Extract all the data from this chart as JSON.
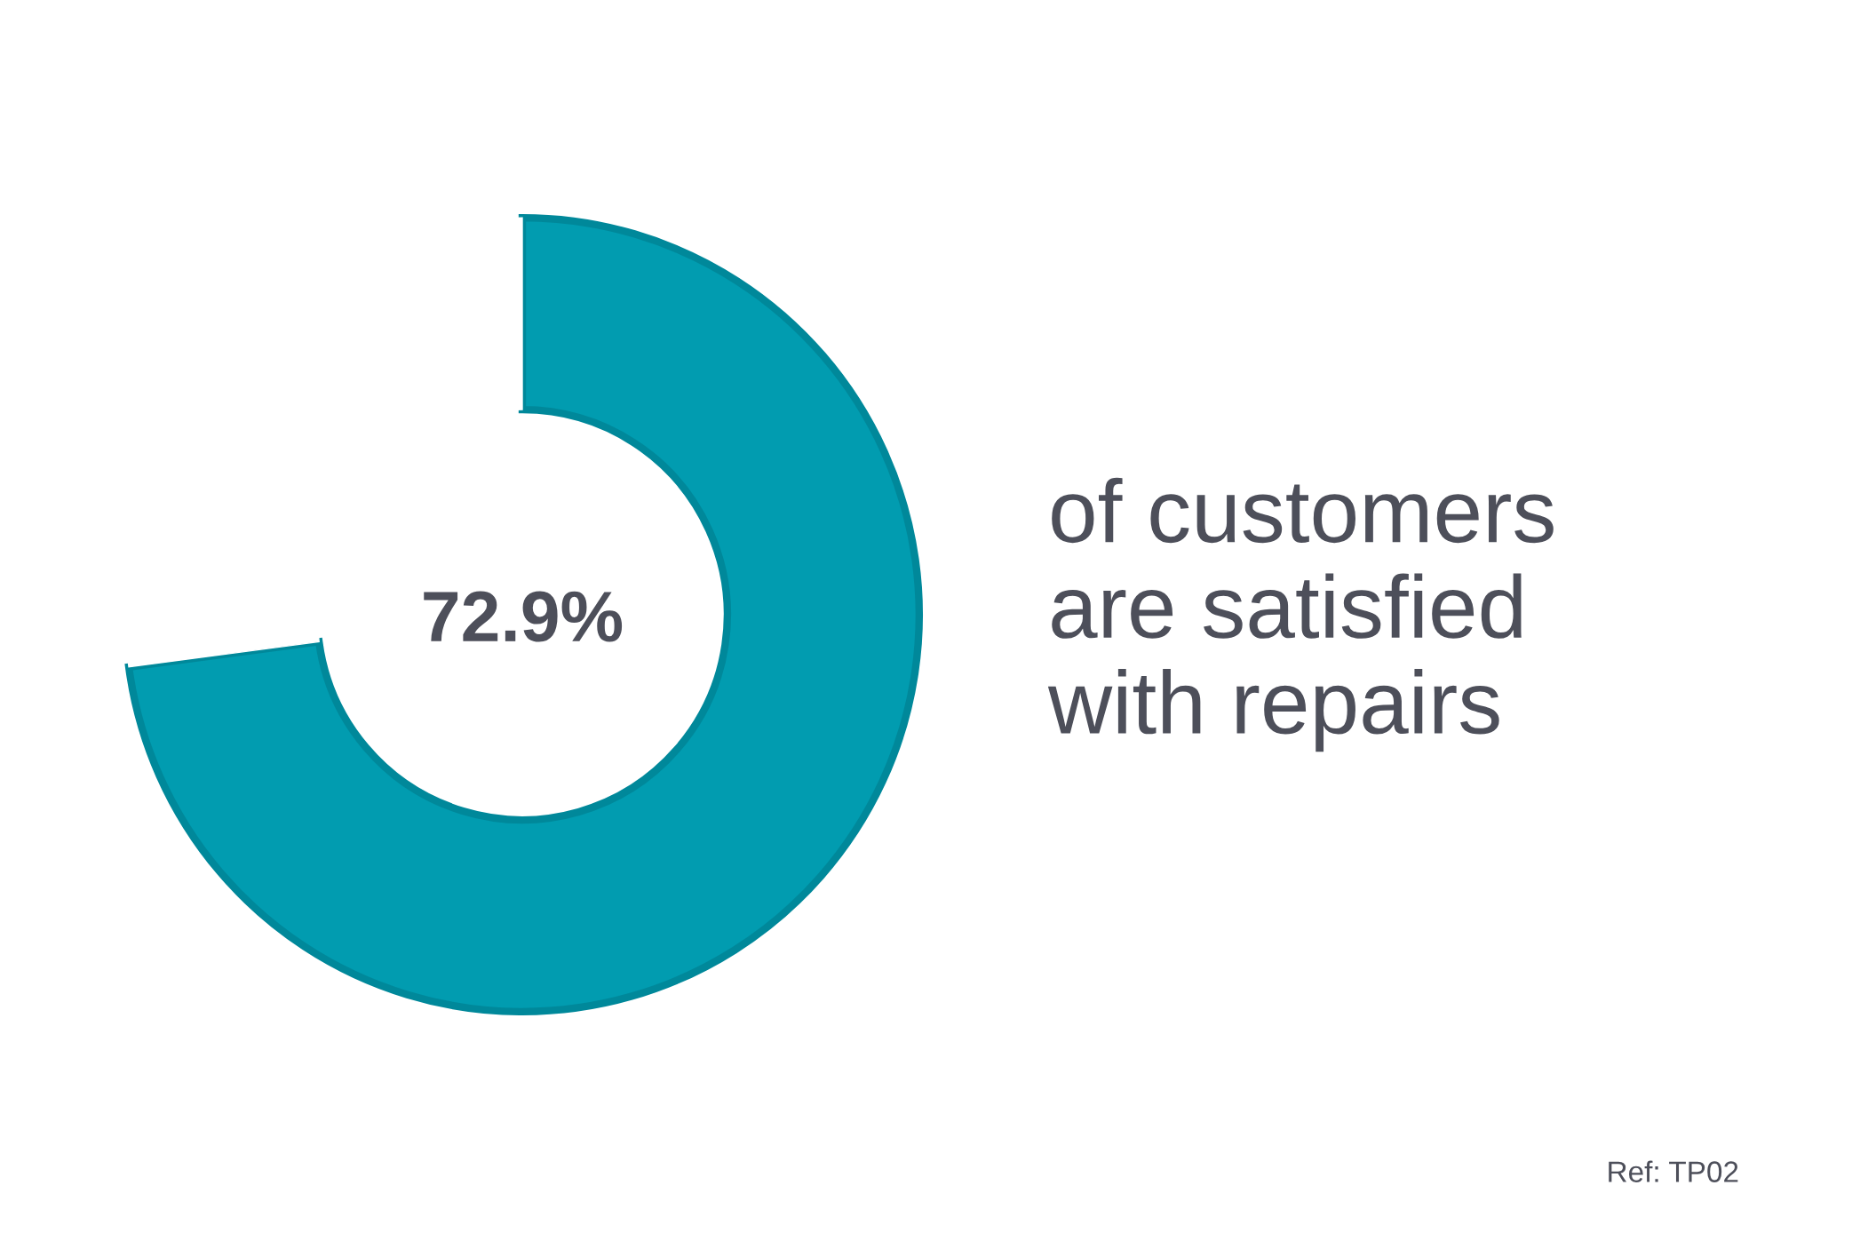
{
  "chart_data": {
    "type": "donut",
    "categories": [
      null,
      null
    ],
    "values": [
      72.9,
      27.1
    ],
    "colors": [
      "#019cb0",
      "#ffffff"
    ],
    "value_labels": [
      "72.9%",
      null
    ],
    "annotations": [
      "of customers\nare satisfied\nwith repairs",
      "Ref: TP02"
    ]
  }
}
